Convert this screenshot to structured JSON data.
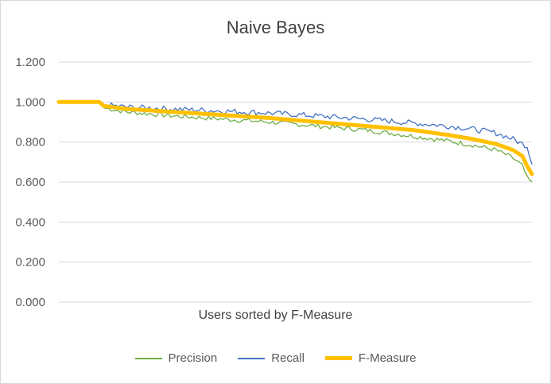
{
  "chart_data": {
    "type": "line",
    "title": "Naive Bayes",
    "xlabel": "Users sorted by F-Measure",
    "ylabel": "",
    "ylim": [
      0,
      1.2
    ],
    "yticks": [
      "0.000",
      "0.200",
      "0.400",
      "0.600",
      "0.800",
      "1.000",
      "1.200"
    ],
    "grid": true,
    "legend_position": "bottom",
    "x_count": 200,
    "series": [
      {
        "name": "Precision",
        "color": "#70ad47",
        "width": 1.3,
        "anchors": [
          [
            1,
            1.0
          ],
          [
            18,
            1.0
          ],
          [
            20,
            0.97
          ],
          [
            30,
            0.95
          ],
          [
            50,
            0.93
          ],
          [
            70,
            0.915
          ],
          [
            90,
            0.9
          ],
          [
            110,
            0.88
          ],
          [
            130,
            0.86
          ],
          [
            150,
            0.83
          ],
          [
            165,
            0.805
          ],
          [
            175,
            0.785
          ],
          [
            185,
            0.76
          ],
          [
            192,
            0.72
          ],
          [
            196,
            0.68
          ],
          [
            198,
            0.62
          ],
          [
            200,
            0.595
          ]
        ],
        "noise": 0.012
      },
      {
        "name": "Recall",
        "color": "#4472c4",
        "width": 1.3,
        "anchors": [
          [
            1,
            1.0
          ],
          [
            18,
            1.0
          ],
          [
            20,
            0.985
          ],
          [
            30,
            0.975
          ],
          [
            50,
            0.965
          ],
          [
            70,
            0.955
          ],
          [
            90,
            0.945
          ],
          [
            110,
            0.93
          ],
          [
            130,
            0.915
          ],
          [
            150,
            0.895
          ],
          [
            165,
            0.88
          ],
          [
            175,
            0.865
          ],
          [
            185,
            0.845
          ],
          [
            192,
            0.815
          ],
          [
            196,
            0.79
          ],
          [
            198,
            0.78
          ],
          [
            200,
            0.695
          ]
        ],
        "noise": 0.014
      },
      {
        "name": "F-Measure",
        "color": "#ffc000",
        "width": 5,
        "anchors": [
          [
            1,
            1.0
          ],
          [
            18,
            1.0
          ],
          [
            20,
            0.98
          ],
          [
            30,
            0.965
          ],
          [
            50,
            0.95
          ],
          [
            70,
            0.935
          ],
          [
            90,
            0.92
          ],
          [
            110,
            0.9
          ],
          [
            130,
            0.88
          ],
          [
            150,
            0.86
          ],
          [
            165,
            0.835
          ],
          [
            175,
            0.815
          ],
          [
            185,
            0.79
          ],
          [
            192,
            0.76
          ],
          [
            196,
            0.73
          ],
          [
            198,
            0.68
          ],
          [
            200,
            0.64
          ]
        ],
        "noise": 0
      }
    ]
  }
}
